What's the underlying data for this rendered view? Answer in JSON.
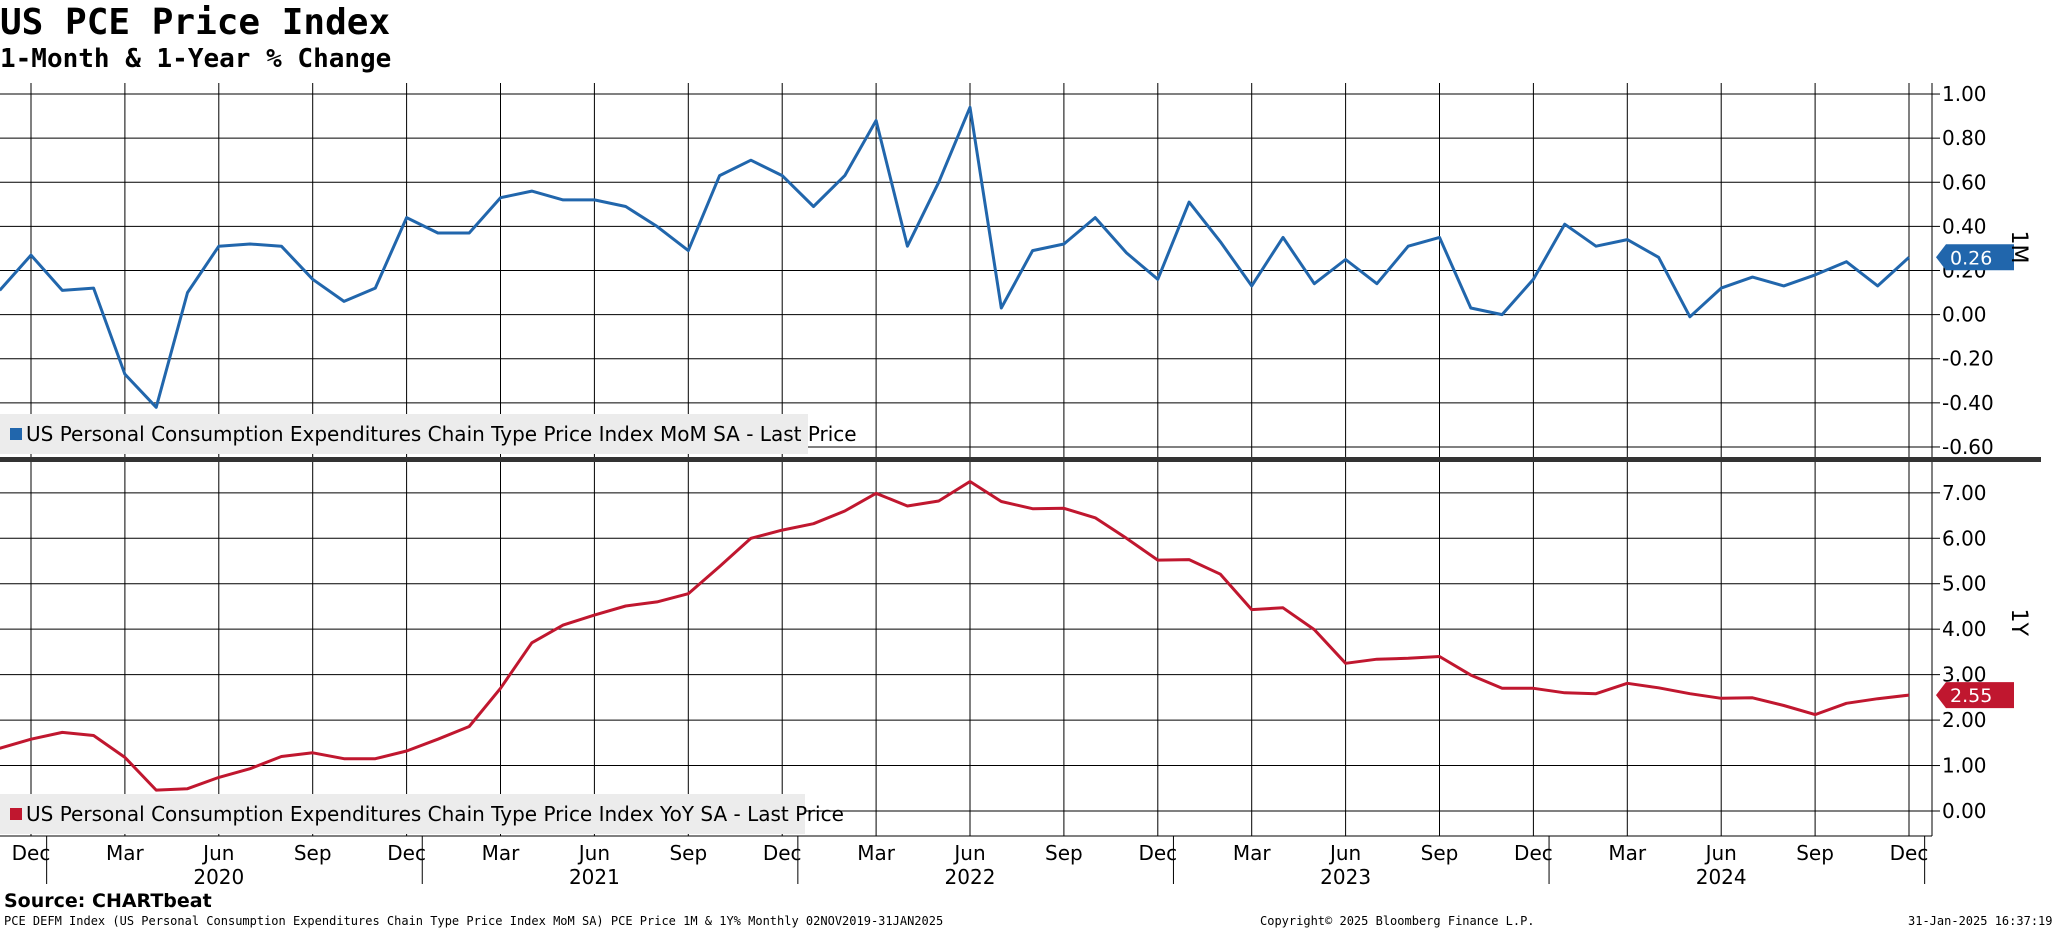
{
  "header": {
    "title": "US PCE Price Index",
    "subtitle": "1-Month & 1-Year % Change"
  },
  "colors": {
    "mom": "#2166ac",
    "yoy": "#c0172f",
    "grid": "#000000",
    "legend_bg": "#ececec"
  },
  "chart_data": [
    {
      "type": "line",
      "panel": "top",
      "axis_label": "1M",
      "legend": "US Personal Consumption Expenditures Chain Type Price Index MoM SA - Last Price",
      "last_value_label": "0.26",
      "ylim": [
        -0.65,
        1.05
      ],
      "yticks": [
        "1.00",
        "0.80",
        "0.60",
        "0.40",
        "0.20",
        "0.00",
        "-0.20",
        "-0.40",
        "-0.60"
      ],
      "ytick_values": [
        1.0,
        0.8,
        0.6,
        0.4,
        0.2,
        0.0,
        -0.2,
        -0.4,
        -0.6
      ],
      "grid": true,
      "series": [
        {
          "values": [
            0.11,
            0.27,
            0.11,
            0.12,
            -0.27,
            -0.42,
            0.1,
            0.31,
            0.32,
            0.31,
            0.16,
            0.06,
            0.12,
            0.44,
            0.37,
            0.37,
            0.53,
            0.56,
            0.52,
            0.52,
            0.49,
            0.4,
            0.29,
            0.63,
            0.7,
            0.63,
            0.49,
            0.63,
            0.88,
            0.31,
            0.6,
            0.94,
            0.03,
            0.29,
            0.32,
            0.44,
            0.28,
            0.16,
            0.51,
            0.33,
            0.13,
            0.35,
            0.14,
            0.25,
            0.14,
            0.31,
            0.35,
            0.03,
            0.0,
            0.16,
            0.41,
            0.31,
            0.34,
            0.26,
            -0.01,
            0.12,
            0.17,
            0.13,
            0.18,
            0.24,
            0.13,
            0.26
          ]
        }
      ]
    },
    {
      "type": "line",
      "panel": "bottom",
      "axis_label": "1Y",
      "legend": "US Personal Consumption Expenditures Chain Type Price Index YoY SA - Last Price",
      "last_value_label": "2.55",
      "ylim": [
        -0.55,
        7.7
      ],
      "yticks": [
        "7.00",
        "6.00",
        "5.00",
        "4.00",
        "3.00",
        "2.00",
        "1.00",
        "0.00"
      ],
      "ytick_values": [
        7,
        6,
        5,
        4,
        3,
        2,
        1,
        0
      ],
      "grid": true,
      "series": [
        {
          "values": [
            1.38,
            1.58,
            1.73,
            1.66,
            1.18,
            0.46,
            0.49,
            0.74,
            0.93,
            1.2,
            1.28,
            1.15,
            1.15,
            1.32,
            1.58,
            1.86,
            2.7,
            3.7,
            4.09,
            4.31,
            4.51,
            4.6,
            4.78,
            5.38,
            6.0,
            6.18,
            6.32,
            6.6,
            6.99,
            6.71,
            6.82,
            7.25,
            6.81,
            6.65,
            6.66,
            6.45,
            6.0,
            5.52,
            5.53,
            5.21,
            4.43,
            4.47,
            3.99,
            3.25,
            3.34,
            3.36,
            3.4,
            2.99,
            2.7,
            2.7,
            2.6,
            2.58,
            2.81,
            2.71,
            2.58,
            2.48,
            2.49,
            2.32,
            2.12,
            2.37,
            2.47,
            2.55
          ]
        }
      ]
    }
  ],
  "x_axis": {
    "month_labels": [
      "Dec",
      "Mar",
      "Jun",
      "Sep",
      "Dec",
      "Mar",
      "Jun",
      "Sep",
      "Dec",
      "Mar",
      "Jun",
      "Sep",
      "Dec",
      "Mar",
      "Jun",
      "Sep",
      "Dec",
      "Mar",
      "Jun",
      "Sep",
      "Dec"
    ],
    "year_labels": [
      "2020",
      "2021",
      "2022",
      "2023",
      "2024"
    ]
  },
  "footer": {
    "source": "Source: CHARTbeat",
    "ticker": "PCE DEFM Index (US Personal Consumption Expenditures Chain Type Price Index MoM SA) PCE Price 1M & 1Y%  Monthly 02NOV2019-31JAN2025",
    "copyright": "Copyright© 2025 Bloomberg Finance L.P.",
    "timestamp": "31-Jan-2025 16:37:19"
  }
}
